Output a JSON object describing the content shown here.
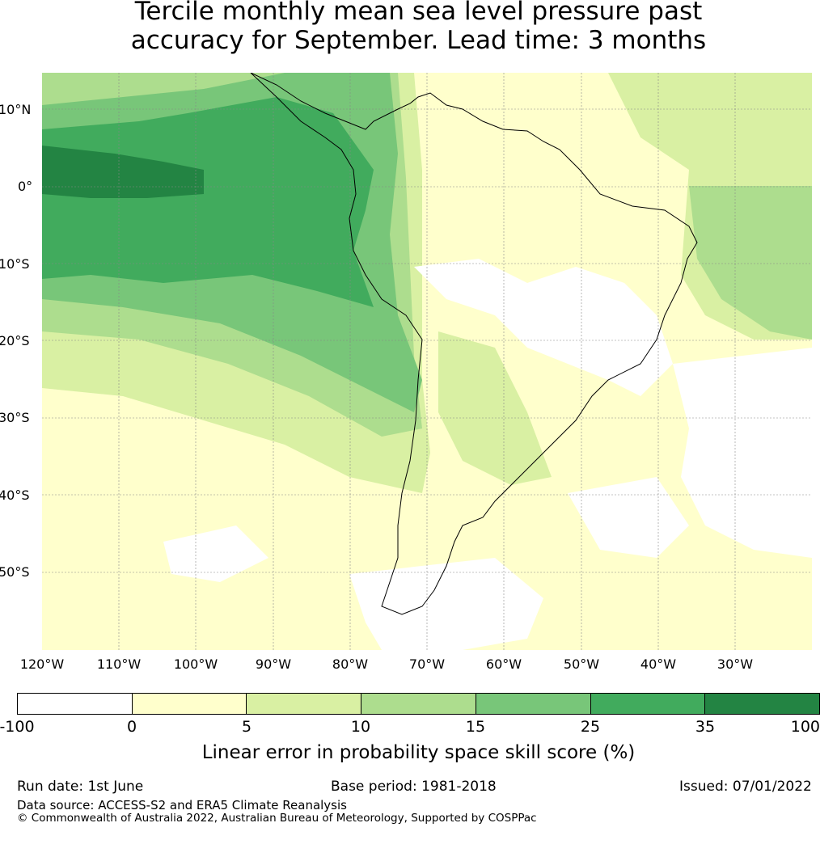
{
  "title": {
    "line1": "Tercile monthly mean sea level pressure past",
    "line2": "accuracy for September. Lead time: 3 months"
  },
  "map": {
    "latitude_labels": [
      "10°N",
      "0°",
      "10°S",
      "20°S",
      "30°S",
      "40°S",
      "50°S"
    ],
    "longitude_labels": [
      "120°W",
      "110°W",
      "100°W",
      "90°W",
      "80°W",
      "70°W",
      "60°W",
      "50°W",
      "40°W",
      "30°W"
    ]
  },
  "colorbar": {
    "ticks": [
      "-100",
      "0",
      "5",
      "10",
      "15",
      "25",
      "35",
      "100"
    ],
    "colors": [
      "#ffffff",
      "#ffffcc",
      "#d9f0a3",
      "#addd8e",
      "#78c679",
      "#41ab5d",
      "#238443"
    ],
    "label": "Linear error in probability space skill score (%)"
  },
  "footer": {
    "run_date": "Run date: 1st June",
    "base_period": "Base period: 1981-2018",
    "issued": "Issued: 07/01/2022",
    "data_source": "Data source: ACCESS-S2 and ERA5 Climate Reanalysis",
    "copyright": "© Commonwealth of Australia 2022, Australian Bureau of Meteorology, Supported by COSPPac"
  }
}
